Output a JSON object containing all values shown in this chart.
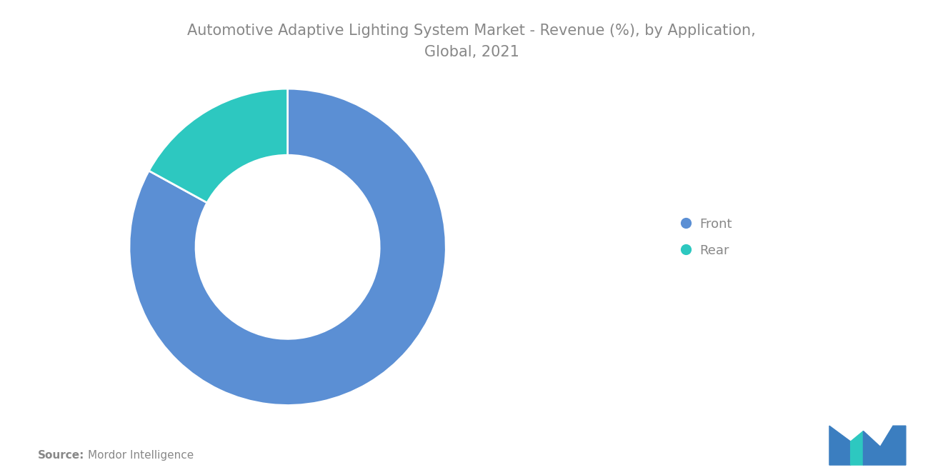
{
  "title": "Automotive Adaptive Lighting System Market - Revenue (%), by Application,\nGlobal, 2021",
  "title_fontsize": 15,
  "title_color": "#888888",
  "segments": [
    "Front",
    "Rear"
  ],
  "values": [
    83,
    17
  ],
  "colors": [
    "#5B8FD4",
    "#2DC8C0"
  ],
  "legend_labels": [
    "Front",
    "Rear"
  ],
  "source_bold": "Source:",
  "source_text": "Mordor Intelligence",
  "source_fontsize": 11,
  "background_color": "#ffffff",
  "donut_width": 0.42,
  "startangle": 90
}
